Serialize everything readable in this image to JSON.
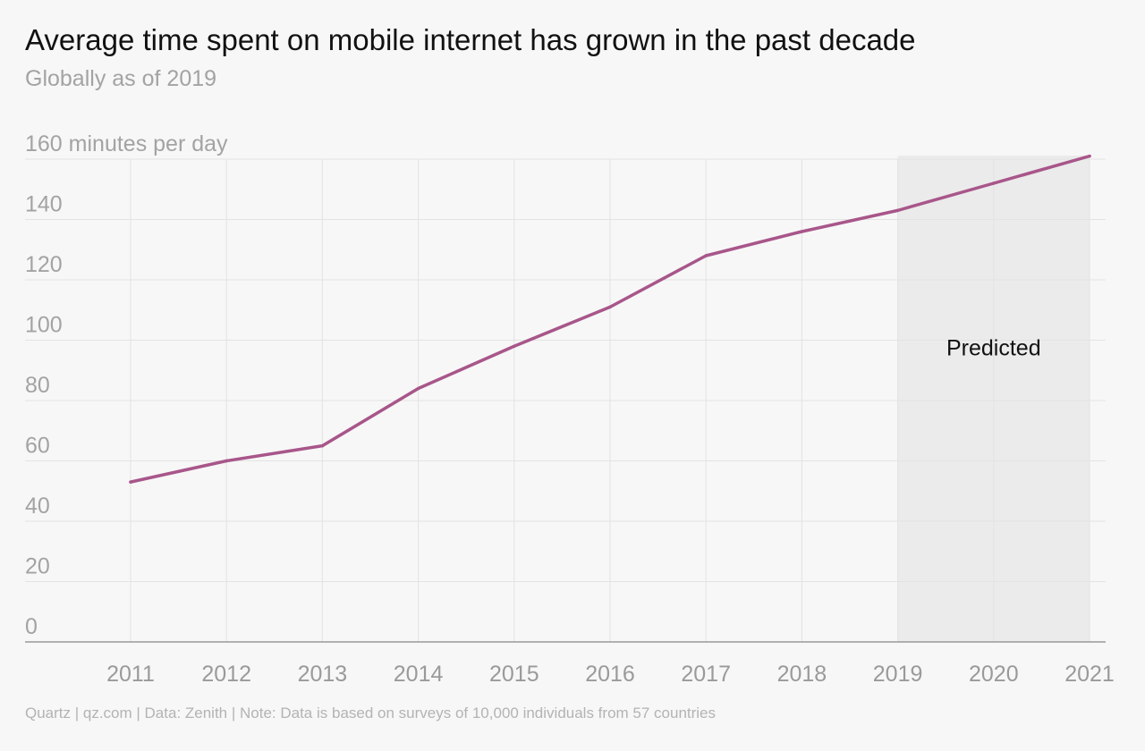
{
  "header": {
    "title": "Average time spent on mobile internet has grown in the past decade",
    "subtitle": "Globally as of 2019"
  },
  "footer": {
    "source": "Quartz | qz.com | Data: Zenith | Note: Data is based on surveys of 10,000 individuals from 57 countries"
  },
  "colors": {
    "line": "#a8568a",
    "predicted_band": "#ebebeb",
    "grid": "#e3e3e3",
    "axis": "#9a9a9a",
    "background": "#f7f7f7"
  },
  "chart_data": {
    "type": "line",
    "title": "Average time spent on mobile internet has grown in the past decade",
    "subtitle": "Globally as of 2019",
    "ylabel": "minutes per day",
    "x": [
      2011,
      2012,
      2013,
      2014,
      2015,
      2016,
      2017,
      2018,
      2019,
      2020,
      2021
    ],
    "xtick_labels": [
      "2011",
      "2012",
      "2013",
      "2014",
      "2015",
      "2016",
      "2017",
      "2018",
      "2019",
      "2020",
      "2021"
    ],
    "series": [
      {
        "values": [
          53,
          60,
          65,
          84,
          98,
          111,
          128,
          136,
          143,
          152,
          161
        ]
      }
    ],
    "ylim": [
      0,
      160
    ],
    "yticks": [
      0,
      20,
      40,
      60,
      80,
      100,
      120,
      140,
      160
    ],
    "ytick_labels": [
      "0",
      "20",
      "40",
      "60",
      "80",
      "100",
      "120",
      "140",
      "160 minutes per day"
    ],
    "grid": true,
    "predicted_region": {
      "x_start": 2019,
      "x_end": 2021,
      "label": "Predicted"
    }
  }
}
